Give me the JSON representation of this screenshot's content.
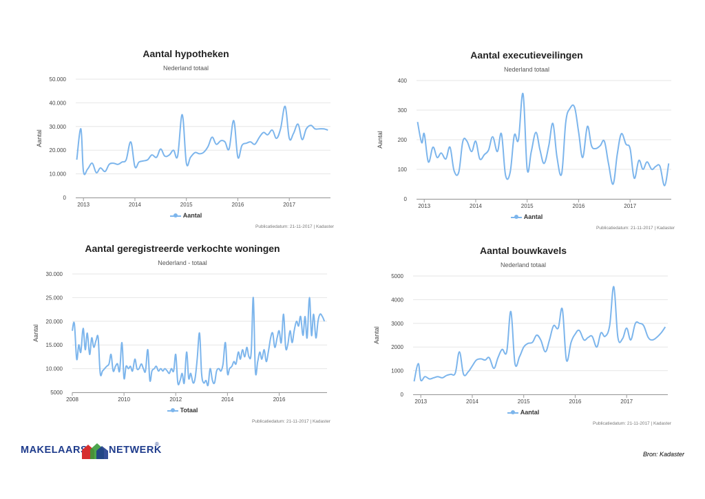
{
  "chart_data": [
    {
      "type": "line",
      "title": "Aantal hypotheken",
      "subtitle": "Nederland totaal",
      "ylabel": "Aantal",
      "ylim": [
        0,
        50000
      ],
      "yticks": [
        "0",
        "10.000",
        "20.000",
        "30.000",
        "40.000",
        "50.000"
      ],
      "yticks_values": [
        0,
        10000,
        20000,
        30000,
        40000,
        50000
      ],
      "xlim": [
        2012.85,
        2017.8
      ],
      "xticks": [
        "2013",
        "2014",
        "2015",
        "2016",
        "2017"
      ],
      "xticks_values": [
        2013,
        2014,
        2015,
        2016,
        2017
      ],
      "series": [
        {
          "name": "Aantal",
          "x": [
            2012.87,
            2012.95,
            2013.0,
            2013.08,
            2013.17,
            2013.25,
            2013.33,
            2013.42,
            2013.5,
            2013.58,
            2013.67,
            2013.75,
            2013.83,
            2013.92,
            2014.0,
            2014.08,
            2014.17,
            2014.25,
            2014.33,
            2014.42,
            2014.5,
            2014.58,
            2014.67,
            2014.75,
            2014.83,
            2014.92,
            2015.0,
            2015.08,
            2015.17,
            2015.25,
            2015.33,
            2015.42,
            2015.5,
            2015.58,
            2015.67,
            2015.75,
            2015.83,
            2015.92,
            2016.0,
            2016.08,
            2016.17,
            2016.25,
            2016.33,
            2016.42,
            2016.5,
            2016.58,
            2016.67,
            2016.75,
            2016.83,
            2016.92,
            2017.0,
            2017.08,
            2017.17,
            2017.25,
            2017.33,
            2017.42,
            2017.5,
            2017.58,
            2017.67,
            2017.75
          ],
          "values": [
            16000,
            29000,
            11000,
            12000,
            14500,
            10500,
            12500,
            11000,
            14000,
            14500,
            14000,
            15000,
            16000,
            23500,
            13000,
            15000,
            15500,
            16000,
            18000,
            17000,
            20500,
            17500,
            18000,
            20000,
            17500,
            35000,
            14500,
            17000,
            19000,
            18500,
            19000,
            21500,
            25500,
            22500,
            24000,
            23500,
            20500,
            32500,
            17000,
            22000,
            23000,
            23500,
            22500,
            25500,
            27500,
            26500,
            28500,
            25000,
            29000,
            38500,
            25000,
            27000,
            31000,
            24500,
            29000,
            30500,
            29000,
            29000,
            29000,
            28500
          ]
        }
      ],
      "legend": "bottom",
      "credit": "Publicatiedatum: 21-11-2017 | Kadaster"
    },
    {
      "type": "line",
      "title": "Aantal executieveilingen",
      "subtitle": "Nederland totaal",
      "ylabel": "Aantal",
      "ylim": [
        0,
        400
      ],
      "yticks": [
        "0",
        "100",
        "200",
        "300",
        "400"
      ],
      "yticks_values": [
        0,
        100,
        200,
        300,
        400
      ],
      "xlim": [
        2012.85,
        2017.8
      ],
      "xticks": [
        "2013",
        "2014",
        "2015",
        "2016",
        "2017"
      ],
      "xticks_values": [
        2013,
        2014,
        2015,
        2016,
        2017
      ],
      "series": [
        {
          "name": "Aantal",
          "x": [
            2012.87,
            2012.95,
            2013.0,
            2013.08,
            2013.17,
            2013.25,
            2013.33,
            2013.42,
            2013.5,
            2013.58,
            2013.67,
            2013.75,
            2013.83,
            2013.92,
            2014.0,
            2014.08,
            2014.17,
            2014.25,
            2014.33,
            2014.42,
            2014.5,
            2014.58,
            2014.67,
            2014.75,
            2014.83,
            2014.92,
            2015.0,
            2015.08,
            2015.17,
            2015.25,
            2015.33,
            2015.42,
            2015.5,
            2015.58,
            2015.67,
            2015.75,
            2015.83,
            2015.92,
            2016.0,
            2016.08,
            2016.17,
            2016.25,
            2016.33,
            2016.42,
            2016.5,
            2016.58,
            2016.67,
            2016.75,
            2016.83,
            2016.92,
            2017.0,
            2017.08,
            2017.17,
            2017.25,
            2017.33,
            2017.42,
            2017.5,
            2017.58,
            2017.67,
            2017.75
          ],
          "values": [
            260,
            190,
            220,
            125,
            175,
            140,
            155,
            135,
            175,
            95,
            90,
            195,
            195,
            160,
            195,
            135,
            150,
            165,
            210,
            160,
            220,
            80,
            90,
            215,
            200,
            355,
            100,
            160,
            225,
            165,
            120,
            180,
            255,
            140,
            85,
            260,
            305,
            310,
            225,
            140,
            245,
            180,
            170,
            180,
            195,
            120,
            50,
            150,
            220,
            185,
            170,
            70,
            130,
            100,
            125,
            100,
            110,
            110,
            45,
            120
          ]
        }
      ],
      "legend": "bottom",
      "credit": "Publicatiedatum: 21-11-2017 | Kadaster"
    },
    {
      "type": "line",
      "title": "Aantal geregistreerde verkochte woningen",
      "subtitle": "Nederland - totaal",
      "ylabel": "Aantal",
      "ylim": [
        5000,
        30000
      ],
      "yticks": [
        "5000",
        "10.000",
        "15.000",
        "20.000",
        "25.000",
        "30.000"
      ],
      "yticks_values": [
        5000,
        10000,
        15000,
        20000,
        25000,
        30000
      ],
      "xlim": [
        2008.0,
        2017.85
      ],
      "xticks": [
        "2008",
        "2010",
        "2012",
        "2014",
        "2016"
      ],
      "xticks_values": [
        2008,
        2010,
        2012,
        2014,
        2016
      ],
      "series": [
        {
          "name": "Totaal",
          "x": [
            2008.0,
            2008.08,
            2008.17,
            2008.25,
            2008.33,
            2008.42,
            2008.5,
            2008.58,
            2008.67,
            2008.75,
            2008.83,
            2008.92,
            2009.0,
            2009.08,
            2009.17,
            2009.25,
            2009.33,
            2009.42,
            2009.5,
            2009.58,
            2009.67,
            2009.75,
            2009.83,
            2009.92,
            2010.0,
            2010.08,
            2010.17,
            2010.25,
            2010.33,
            2010.42,
            2010.5,
            2010.58,
            2010.67,
            2010.75,
            2010.83,
            2010.92,
            2011.0,
            2011.08,
            2011.17,
            2011.25,
            2011.33,
            2011.42,
            2011.5,
            2011.58,
            2011.67,
            2011.75,
            2011.83,
            2011.92,
            2012.0,
            2012.08,
            2012.17,
            2012.25,
            2012.33,
            2012.42,
            2012.5,
            2012.58,
            2012.67,
            2012.75,
            2012.83,
            2012.92,
            2013.0,
            2013.08,
            2013.17,
            2013.25,
            2013.33,
            2013.42,
            2013.5,
            2013.58,
            2013.67,
            2013.75,
            2013.83,
            2013.92,
            2014.0,
            2014.08,
            2014.17,
            2014.25,
            2014.33,
            2014.42,
            2014.5,
            2014.58,
            2014.67,
            2014.75,
            2014.83,
            2014.92,
            2015.0,
            2015.08,
            2015.17,
            2015.25,
            2015.33,
            2015.42,
            2015.5,
            2015.58,
            2015.67,
            2015.75,
            2015.83,
            2015.92,
            2016.0,
            2016.08,
            2016.17,
            2016.25,
            2016.33,
            2016.42,
            2016.5,
            2016.58,
            2016.67,
            2016.75,
            2016.83,
            2016.92,
            2017.0,
            2017.08,
            2017.17,
            2017.25,
            2017.33,
            2017.42,
            2017.5,
            2017.58,
            2017.67,
            2017.75
          ],
          "values": [
            18000,
            19500,
            12000,
            15000,
            13500,
            18500,
            14000,
            17500,
            13000,
            16500,
            14500,
            16000,
            16500,
            9000,
            9500,
            10000,
            10500,
            11000,
            13000,
            9500,
            10500,
            11000,
            9500,
            15500,
            8000,
            10500,
            10000,
            10500,
            9500,
            12000,
            10000,
            10000,
            11000,
            10000,
            9500,
            14000,
            7500,
            9500,
            10000,
            10500,
            9500,
            10000,
            9500,
            10000,
            9500,
            9000,
            10000,
            9500,
            13000,
            7000,
            7500,
            9000,
            7000,
            13500,
            8000,
            9000,
            7000,
            8000,
            12000,
            17500,
            9000,
            7000,
            7500,
            6500,
            10000,
            7500,
            7000,
            9500,
            10000,
            9500,
            11000,
            15500,
            9000,
            10000,
            10500,
            11500,
            11000,
            13500,
            12000,
            14000,
            12500,
            14500,
            12500,
            13500,
            25000,
            9500,
            11500,
            13500,
            12000,
            14000,
            11500,
            13500,
            16500,
            17500,
            14500,
            16500,
            18000,
            15500,
            21500,
            14500,
            15000,
            18000,
            15500,
            18000,
            20000,
            19000,
            21000,
            17000,
            21000,
            16500,
            25000,
            17000,
            21500,
            16500,
            20000,
            21500,
            21000,
            20000
          ]
        }
      ],
      "legend": "bottom",
      "credit": "Publicatiedatum: 21-11-2017 | Kadaster"
    },
    {
      "type": "line",
      "title": "Aantal bouwkavels",
      "subtitle": "Nederland totaal",
      "ylabel": "Aantal",
      "ylim": [
        0,
        5000
      ],
      "yticks": [
        "0",
        "1000",
        "2000",
        "3000",
        "4000",
        "5000"
      ],
      "yticks_values": [
        0,
        1000,
        2000,
        3000,
        4000,
        5000
      ],
      "xlim": [
        2012.85,
        2017.8
      ],
      "xticks": [
        "2013",
        "2014",
        "2015",
        "2016",
        "2017"
      ],
      "xticks_values": [
        2013,
        2014,
        2015,
        2016,
        2017
      ],
      "series": [
        {
          "name": "Aantal",
          "x": [
            2012.87,
            2012.95,
            2013.0,
            2013.08,
            2013.17,
            2013.25,
            2013.33,
            2013.42,
            2013.5,
            2013.58,
            2013.67,
            2013.75,
            2013.83,
            2013.92,
            2014.0,
            2014.08,
            2014.17,
            2014.25,
            2014.33,
            2014.42,
            2014.5,
            2014.58,
            2014.67,
            2014.75,
            2014.83,
            2014.92,
            2015.0,
            2015.08,
            2015.17,
            2015.25,
            2015.33,
            2015.42,
            2015.5,
            2015.58,
            2015.67,
            2015.75,
            2015.83,
            2015.92,
            2016.0,
            2016.08,
            2016.17,
            2016.25,
            2016.33,
            2016.42,
            2016.5,
            2016.58,
            2016.67,
            2016.75,
            2016.83,
            2016.92,
            2017.0,
            2017.08,
            2017.17,
            2017.25,
            2017.33,
            2017.42,
            2017.5,
            2017.58,
            2017.67,
            2017.75
          ],
          "values": [
            550,
            1300,
            600,
            750,
            650,
            700,
            750,
            700,
            800,
            850,
            900,
            1800,
            850,
            950,
            1200,
            1450,
            1500,
            1450,
            1550,
            1100,
            1550,
            1900,
            1800,
            3500,
            1300,
            1600,
            2000,
            2150,
            2200,
            2500,
            2300,
            1800,
            2300,
            2900,
            2800,
            3600,
            1450,
            2200,
            2550,
            2700,
            2300,
            2400,
            2450,
            2000,
            2600,
            2450,
            2900,
            4550,
            2400,
            2350,
            2800,
            2300,
            3000,
            3000,
            2900,
            2400,
            2300,
            2400,
            2600,
            2850
          ]
        }
      ],
      "legend": "bottom",
      "credit": "Publicatiedatum: 21-11-2017 | Kadaster"
    }
  ],
  "footer": {
    "logo_left": "MAKELAARS",
    "logo_right": "NETWERK",
    "logo_reg": "®",
    "source": "Bron: Kadaster"
  },
  "colors": {
    "line": "#7cb5ec",
    "grid": "#e6e6e6",
    "brand_blue": "#1f3c8c",
    "brand_red": "#d62e2e",
    "brand_green": "#3a9b3a"
  }
}
